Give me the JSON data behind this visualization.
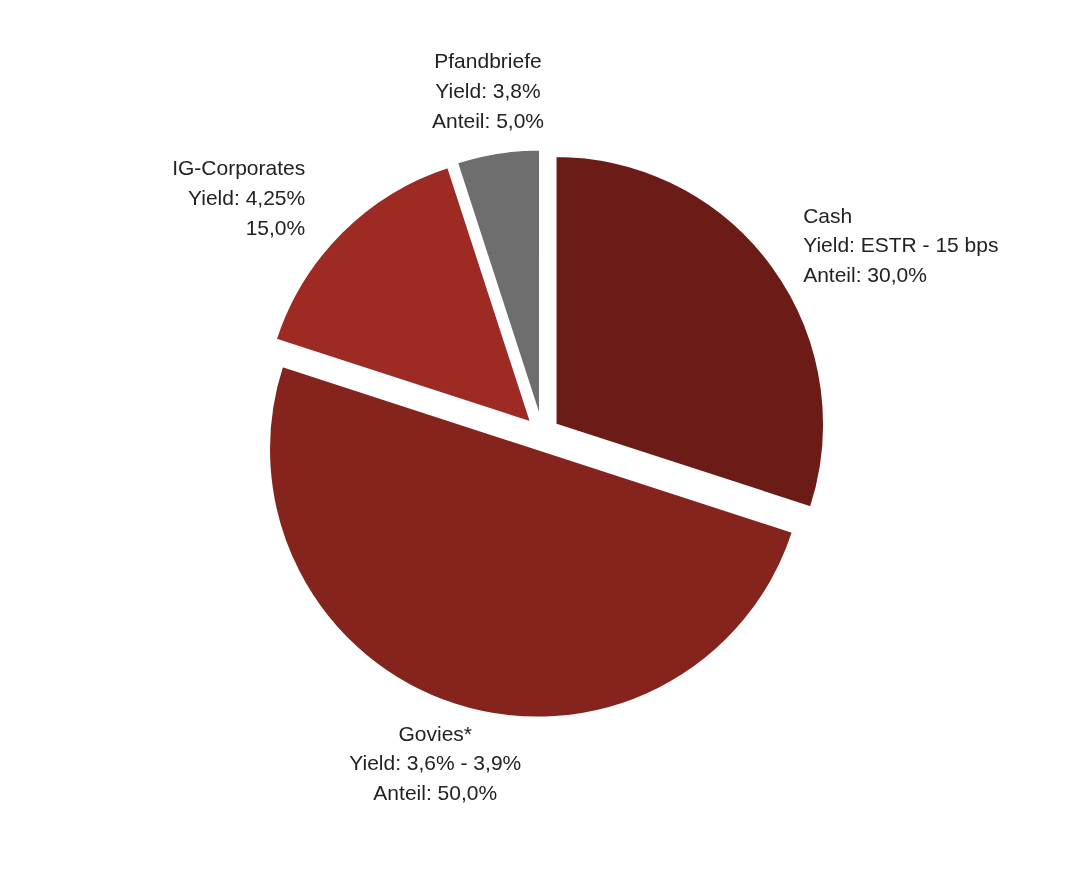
{
  "chart_data": {
    "type": "pie",
    "categories": [
      "Cash",
      "Govies*",
      "IG-Corporates",
      "Pfandbriefe"
    ],
    "values": [
      30,
      50,
      15,
      5
    ],
    "colors": [
      "#6b1c17",
      "#85231d",
      "#9e2a24",
      "#6e6e6e"
    ],
    "value_labels": [
      "Yield: ESTR - 15 bps\nAnteil: 30,0%",
      "Yield: 3,6% - 3,9%\nAnteil: 50,0%",
      "Yield: 4,25%\n15,0%",
      "Yield: 3,8%\nAnteil: 5,0%"
    ]
  }
}
